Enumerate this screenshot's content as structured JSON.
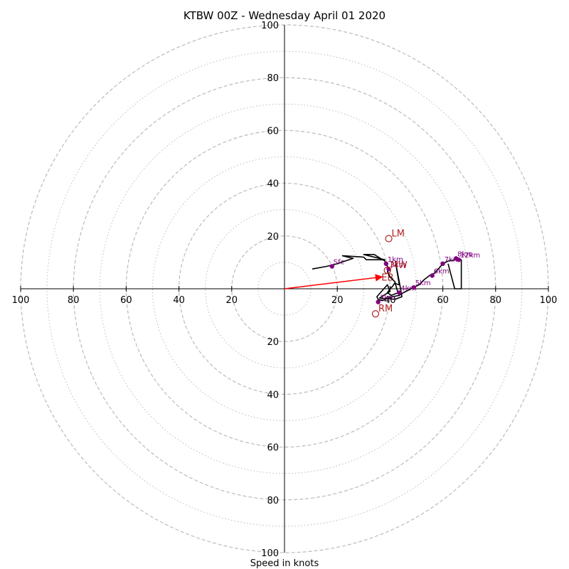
{
  "chart_data": {
    "type": "hodograph",
    "title": "KTBW 00Z - Wednesday April 01 2020",
    "xlabel": "Speed in knots",
    "units": "knots",
    "range": [
      -100,
      100
    ],
    "ring_tick_labels": [
      "20",
      "40",
      "60",
      "80",
      "100"
    ],
    "major_rings": [
      20,
      40,
      60,
      80,
      100
    ],
    "minor_rings": [
      10,
      30,
      50,
      70,
      90
    ],
    "colors": {
      "trace": "#000000",
      "height_markers": "#800080",
      "storm_motion": "#b22222",
      "mean_wind_vector": "#ff0000",
      "rings": "#bbbbbb",
      "axes": "#000000"
    },
    "trace": [
      [
        10.5,
        7.5
      ],
      [
        16,
        8.5
      ],
      [
        20,
        9.5
      ],
      [
        26,
        11.5
      ],
      [
        22,
        12.5
      ],
      [
        30,
        12
      ],
      [
        31,
        11
      ],
      [
        38,
        11
      ],
      [
        30,
        13
      ],
      [
        34,
        13
      ],
      [
        38,
        10.5
      ],
      [
        38.5,
        9.5
      ],
      [
        39,
        8.5
      ],
      [
        39.5,
        7.5
      ],
      [
        39,
        6.5
      ],
      [
        39.5,
        5.5
      ],
      [
        40,
        4.5
      ],
      [
        42,
        2.5
      ],
      [
        41,
        1
      ],
      [
        40,
        0
      ],
      [
        39,
        -1.5
      ],
      [
        40.5,
        -2.5
      ],
      [
        43,
        -1.5
      ],
      [
        42,
        2
      ],
      [
        43.5,
        1.5
      ],
      [
        42,
        10.5
      ],
      [
        44,
        0
      ],
      [
        44.5,
        -3
      ],
      [
        42,
        -4
      ],
      [
        36,
        -3.5
      ],
      [
        40,
        -1
      ],
      [
        39,
        1.5
      ],
      [
        35,
        -3
      ],
      [
        35.5,
        -4
      ],
      [
        37,
        -4.5
      ],
      [
        39.5,
        -3.5
      ],
      [
        41,
        -3
      ],
      [
        43.5,
        -2.5
      ],
      [
        45,
        -1.5
      ],
      [
        47,
        -0.5
      ],
      [
        49,
        0.5
      ],
      [
        51,
        1.5
      ],
      [
        53,
        3.5
      ],
      [
        55,
        5
      ],
      [
        57,
        6
      ],
      [
        60,
        9.5
      ],
      [
        62,
        10.5
      ],
      [
        65,
        11
      ],
      [
        67,
        11
      ],
      [
        67,
        0
      ],
      [
        64.5,
        0
      ],
      [
        62,
        9.5
      ]
    ],
    "height_markers": [
      {
        "label": "Sfc",
        "x": 18,
        "y": 8.5
      },
      {
        "label": "1km",
        "x": 38.5,
        "y": 9.5
      },
      {
        "label": "2km",
        "x": 39.5,
        "y": 7.5
      },
      {
        "label": "3km",
        "x": 35.5,
        "y": -5
      },
      {
        "label": "4km",
        "x": 43.5,
        "y": -1.5
      },
      {
        "label": "5km",
        "x": 49,
        "y": 0.5
      },
      {
        "label": "6km",
        "x": 56,
        "y": 5
      },
      {
        "label": "7km",
        "x": 60,
        "y": 9.5
      },
      {
        "label": "8km",
        "x": 65,
        "y": 11.5
      },
      {
        "label": "12km",
        "x": 66,
        "y": 11
      }
    ],
    "storm_motion": [
      {
        "label": "LM",
        "x": 39.5,
        "y": 19
      },
      {
        "label": "RM",
        "x": 34.5,
        "y": -9.5
      },
      {
        "label": "MW",
        "x": 39,
        "y": 7
      }
    ],
    "mean_wind_vector": {
      "label": "EB",
      "x": 37,
      "y": 4.5
    }
  }
}
